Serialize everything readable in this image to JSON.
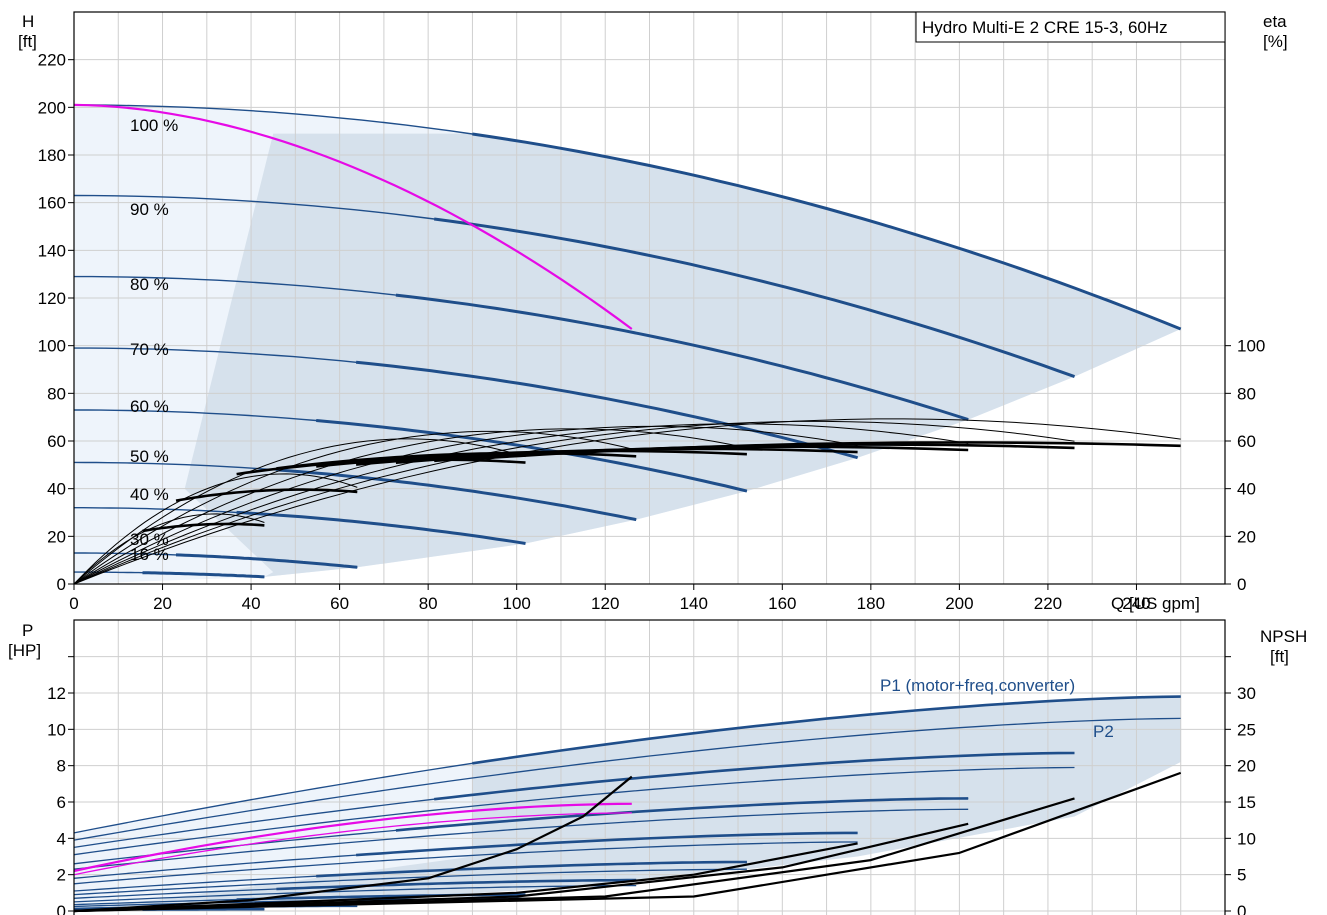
{
  "chart_data": [
    {
      "type": "line",
      "title": "Hydro Multi-E 2 CRE 15-3, 60Hz",
      "xlabel": "Q [US gpm]",
      "ylabel": "H\n[ft]",
      "y2label": "eta\n[%]",
      "xlim": [
        0,
        260
      ],
      "ylim": [
        0,
        240
      ],
      "y2lim": [
        0,
        100
      ],
      "grid": true,
      "x_ticks": [
        0,
        20,
        40,
        60,
        80,
        100,
        120,
        140,
        160,
        180,
        200,
        220,
        240
      ],
      "y_ticks": [
        0,
        20,
        40,
        60,
        80,
        100,
        120,
        140,
        160,
        180,
        200,
        220
      ],
      "y2_ticks": [
        0,
        20,
        40,
        60,
        80,
        100
      ],
      "colors": {
        "head": "#1f4e8a",
        "system": "#e60ae6",
        "efficiency": "#000000",
        "area_light": "#eef4fb",
        "area_dark": "#d6e1ec"
      },
      "speed_labels": [
        "100 %",
        "90 %",
        "80 %",
        "70 %",
        "60 %",
        "50 %",
        "40 %",
        "30 %",
        "16 %"
      ],
      "head_series": [
        {
          "name": "100 %",
          "H0": 201,
          "Qmax": 250,
          "Hend": 107
        },
        {
          "name": "90 %",
          "H0": 163,
          "Qmax": 226,
          "Hend": 87
        },
        {
          "name": "80 %",
          "H0": 129,
          "Qmax": 202,
          "Hend": 69
        },
        {
          "name": "70 %",
          "H0": 99,
          "Qmax": 177,
          "Hend": 53
        },
        {
          "name": "60 %",
          "H0": 73,
          "Qmax": 152,
          "Hend": 39
        },
        {
          "name": "50 %",
          "H0": 51,
          "Qmax": 127,
          "Hend": 27
        },
        {
          "name": "40 %",
          "H0": 32,
          "Qmax": 102,
          "Hend": 17
        },
        {
          "name": "30 %",
          "H0": 13,
          "Qmax": 64,
          "Hend": 7
        },
        {
          "name": "16 %",
          "H0": 5,
          "Qmax": 43,
          "Hend": 3
        }
      ],
      "system_curve": {
        "x": [
          0,
          45,
          75,
          100,
          126
        ],
        "y": [
          201,
          189,
          165,
          139,
          107
        ]
      },
      "efficiency_series": [
        {
          "Qmax": 250,
          "peak": 66
        },
        {
          "Qmax": 226,
          "peak": 65
        },
        {
          "Qmax": 202,
          "peak": 64
        },
        {
          "Qmax": 177,
          "peak": 63
        },
        {
          "Qmax": 152,
          "peak": 62
        },
        {
          "Qmax": 127,
          "peak": 61
        },
        {
          "Qmax": 102,
          "peak": 58
        },
        {
          "Qmax": 64,
          "peak": 44
        },
        {
          "Qmax": 43,
          "peak": 28
        }
      ]
    },
    {
      "type": "line",
      "xlabel": "",
      "ylabel": "P\n[HP]",
      "y2label": "NPSH\n[ft]",
      "xlim": [
        0,
        260
      ],
      "ylim": [
        0,
        14
      ],
      "y2lim": [
        0,
        35
      ],
      "grid": true,
      "y_ticks": [
        0,
        2,
        4,
        6,
        8,
        10,
        12
      ],
      "y2_ticks": [
        0,
        5,
        10,
        15,
        20,
        25,
        30
      ],
      "annotations": [
        "P1 (motor+freq.converter)",
        "P2"
      ],
      "power_series": [
        {
          "name": "P1 (motor+freq.converter)",
          "p0": 4.3,
          "pend": 11.8,
          "Qmax": 250
        },
        {
          "name": "P2",
          "p0": 3.9,
          "pend": 10.6,
          "Qmax": 250
        },
        {
          "p0": 3.5,
          "pend": 8.7,
          "Qmax": 226
        },
        {
          "p0": 3.1,
          "pend": 7.9,
          "Qmax": 226
        },
        {
          "p0": 2.6,
          "pend": 6.2,
          "Qmax": 202
        },
        {
          "p0": 2.3,
          "pend": 5.6,
          "Qmax": 202
        },
        {
          "p0": 1.8,
          "pend": 4.3,
          "Qmax": 177
        },
        {
          "p0": 1.5,
          "pend": 3.8,
          "Qmax": 177
        },
        {
          "p0": 1.1,
          "pend": 2.7,
          "Qmax": 152
        },
        {
          "p0": 0.9,
          "pend": 2.3,
          "Qmax": 152
        },
        {
          "p0": 0.7,
          "pend": 1.7,
          "Qmax": 127
        },
        {
          "p0": 0.5,
          "pend": 1.4,
          "Qmax": 127
        },
        {
          "p0": 0.35,
          "pend": 0.9,
          "Qmax": 102
        },
        {
          "p0": 0.25,
          "pend": 0.7,
          "Qmax": 102
        },
        {
          "p0": 0.15,
          "pend": 0.35,
          "Qmax": 64
        },
        {
          "p0": 0.1,
          "pend": 0.25,
          "Qmax": 64
        },
        {
          "p0": 0.05,
          "pend": 0.1,
          "Qmax": 43
        }
      ],
      "system_power": [
        {
          "p0": 2.2,
          "pend": 5.9,
          "Qmax": 126
        },
        {
          "p0": 2.0,
          "pend": 5.4,
          "Qmax": 126
        }
      ],
      "npsh_series": [
        {
          "x": [
            0,
            40,
            80,
            100,
            115,
            126
          ],
          "y": [
            0,
            1.5,
            4.5,
            8.5,
            13,
            18.5
          ]
        },
        {
          "x": [
            0,
            100,
            140,
            177
          ],
          "y": [
            0,
            2.5,
            5,
            9.3
          ]
        },
        {
          "x": [
            0,
            100,
            160,
            202
          ],
          "y": [
            0,
            2,
            6,
            12
          ]
        },
        {
          "x": [
            0,
            120,
            180,
            226
          ],
          "y": [
            0,
            2,
            7,
            15.5
          ]
        },
        {
          "x": [
            0,
            140,
            200,
            250
          ],
          "y": [
            0,
            2,
            8,
            19
          ]
        }
      ]
    }
  ]
}
